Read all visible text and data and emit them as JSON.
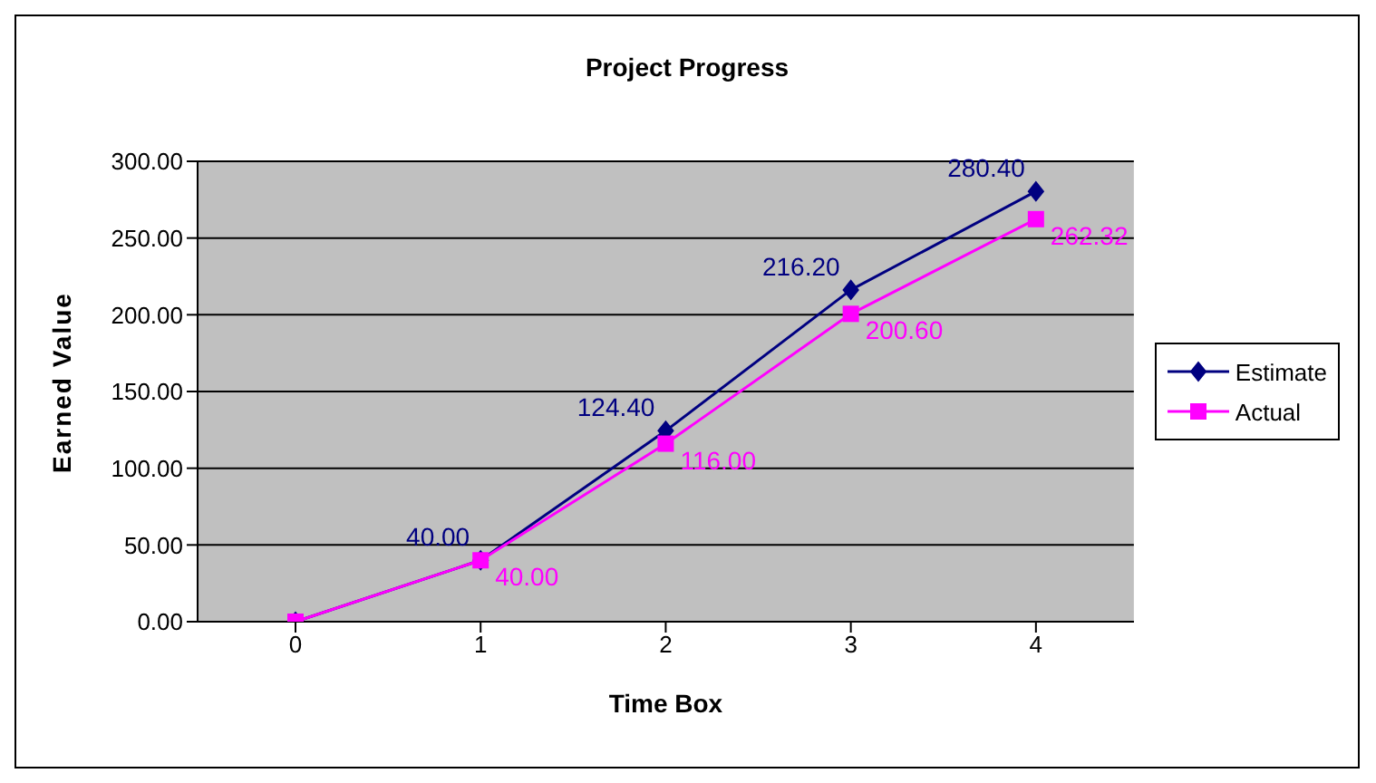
{
  "chart_data": {
    "type": "line",
    "title": "Project Progress",
    "xlabel": "Time Box",
    "ylabel": "Earned Value",
    "categories": [
      "0",
      "1",
      "2",
      "3",
      "4"
    ],
    "series": [
      {
        "name": "Estimate",
        "color": "#000080",
        "marker": "diamond",
        "values": [
          0,
          40,
          124.4,
          216.2,
          280.4
        ],
        "value_labels": [
          null,
          "40.00",
          "124.40",
          "216.20",
          "280.40"
        ]
      },
      {
        "name": "Actual",
        "color": "#ff00ff",
        "marker": "square",
        "values": [
          0,
          40,
          116,
          200.6,
          262.32
        ],
        "value_labels": [
          null,
          "40.00",
          "116.00",
          "200.60",
          "262.32"
        ]
      }
    ],
    "ylim": [
      0,
      300
    ],
    "yticks": [
      {
        "value": 0,
        "label": "0.00"
      },
      {
        "value": 50,
        "label": "50.00"
      },
      {
        "value": 100,
        "label": "100.00"
      },
      {
        "value": 150,
        "label": "150.00"
      },
      {
        "value": 200,
        "label": "200.00"
      },
      {
        "value": 250,
        "label": "250.00"
      },
      {
        "value": 300,
        "label": "300.00"
      }
    ],
    "grid": "y",
    "legend": "right"
  }
}
